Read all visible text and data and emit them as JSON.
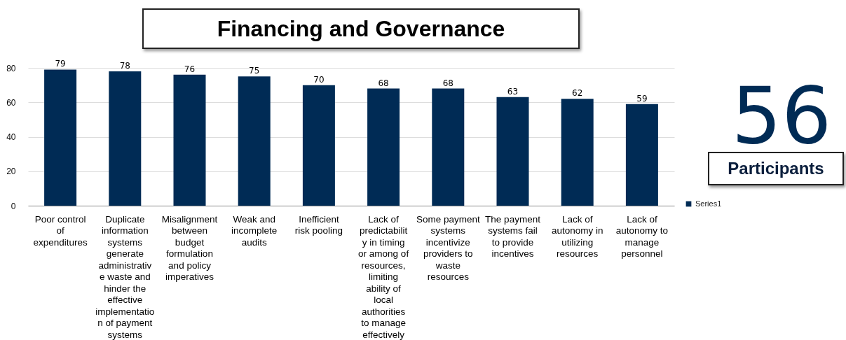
{
  "chart_data": {
    "type": "bar",
    "title": "Financing and Governance",
    "categories": [
      "Poor control of expenditures",
      "Duplicate information systems generate administrative waste and hinder the effective implementation of payment systems",
      "Misalignment between budget formulation and policy imperatives",
      "Weak and incomplete audits",
      "Inefficient risk pooling",
      "Lack of predictability in timing or among of resources, limiting ability of local authorities to manage effectively",
      "Some payment systems incentivize providers to waste resources",
      "The payment systems fail to provide incentives",
      "Lack of autonomy in utilizing resources",
      "Lack of autonomy to manage personnel"
    ],
    "series": [
      {
        "name": "Series1",
        "color": "#002b55",
        "values": [
          79,
          78,
          76,
          75,
          70,
          68,
          68,
          63,
          62,
          59
        ]
      }
    ],
    "ylim": [
      0,
      80
    ],
    "yticks": [
      0,
      20,
      40,
      60,
      80
    ],
    "grid": "y",
    "legend": "bottom right",
    "data_labels": true,
    "annotations": [
      "56",
      "Participants"
    ]
  }
}
